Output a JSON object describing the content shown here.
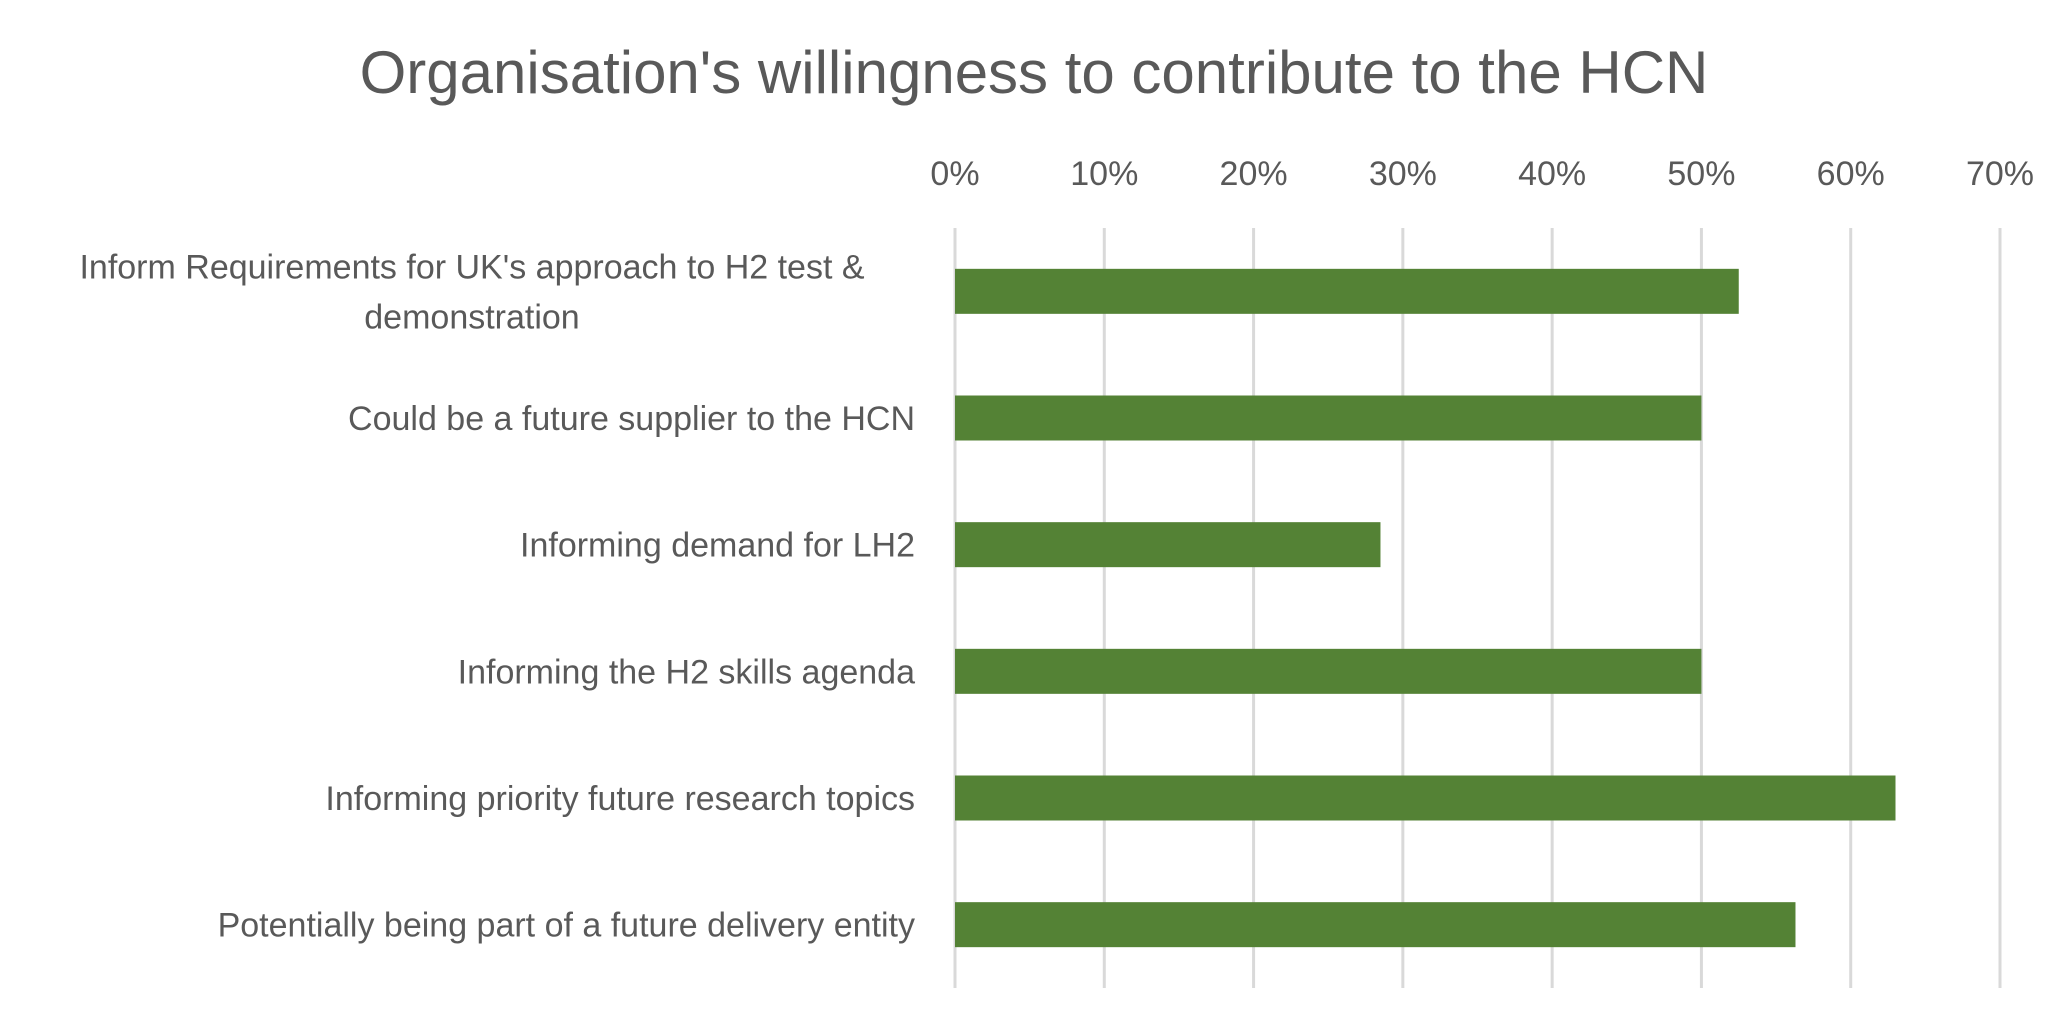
{
  "chart_data": {
    "type": "bar",
    "orientation": "horizontal",
    "title": "Organisation's willingness to contribute to the HCN",
    "xlabel": "",
    "ylabel": "",
    "categories": [
      [
        "Inform Requirements for UK's approach to H2 test &",
        "demonstration"
      ],
      [
        "Could be a future supplier to the HCN"
      ],
      [
        "Informing demand for LH2"
      ],
      [
        "Informing the H2 skills agenda"
      ],
      [
        "Informing priority future research topics"
      ],
      [
        "Potentially being part of a future delivery entity"
      ]
    ],
    "values": [
      0.525,
      0.5,
      0.285,
      0.5,
      0.63,
      0.563
    ],
    "xlim": [
      0,
      0.7
    ],
    "ticks": [
      "0%",
      "10%",
      "20%",
      "30%",
      "40%",
      "50%",
      "60%",
      "70%"
    ],
    "tick_values": [
      0,
      0.1,
      0.2,
      0.3,
      0.4,
      0.5,
      0.6,
      0.7
    ],
    "x_axis_position": "top",
    "grid": true,
    "legend": "none",
    "bar_color": "#548235",
    "grid_color": "#d9d9d9",
    "text_color": "#595959"
  }
}
